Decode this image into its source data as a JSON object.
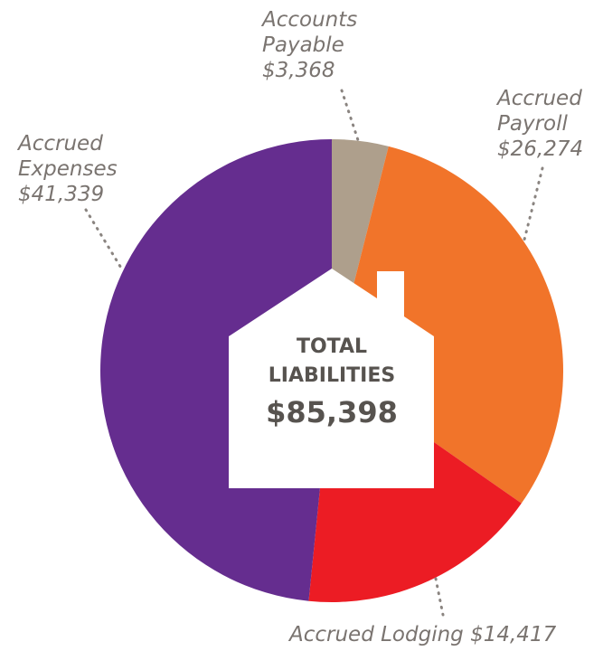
{
  "chart_data": {
    "type": "pie",
    "categories": [
      "Accounts Payable",
      "Accrued Payroll",
      "Accrued Lodging",
      "Accrued Expenses"
    ],
    "values": [
      3368,
      26274,
      14417,
      41339
    ],
    "value_labels": [
      "$3,368",
      "$26,274",
      "$14,417",
      "$41,339"
    ],
    "colors": [
      "#ae9f8c",
      "#f1742a",
      "#ec1c24",
      "#652d8f"
    ],
    "center_title": "TOTAL LIABILITIES",
    "center_value": "$85,398"
  }
}
